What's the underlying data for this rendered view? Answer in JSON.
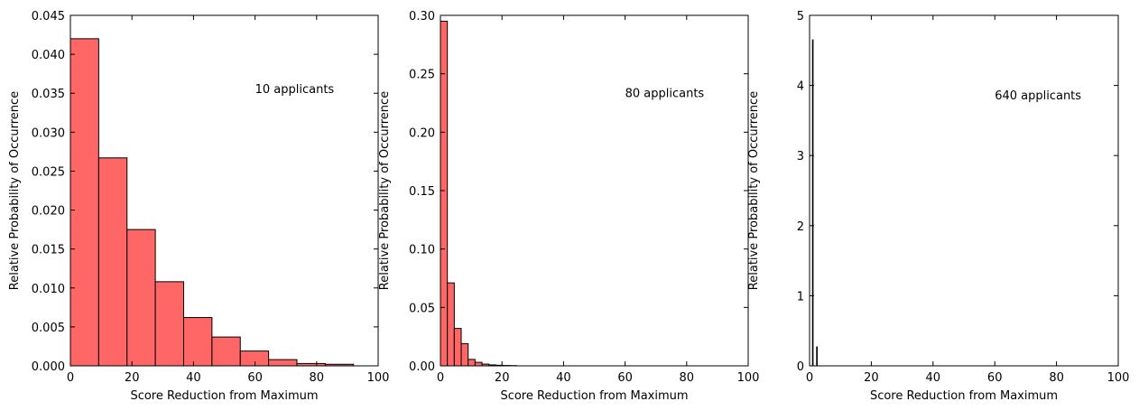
{
  "chart_data": [
    {
      "type": "bar",
      "xlabel": "Score Reduction from Maximum",
      "ylabel": "Relative Probability of Occurrence",
      "annotation": "10 applicants",
      "annotation_at": [
        60,
        0.035
      ],
      "xlim": [
        0,
        100
      ],
      "ylim": [
        0,
        0.045
      ],
      "xticks": [
        0,
        20,
        40,
        60,
        80,
        100
      ],
      "yticks": [
        "0.000",
        "0.005",
        "0.010",
        "0.015",
        "0.020",
        "0.025",
        "0.030",
        "0.035",
        "0.040",
        "0.045"
      ],
      "bin_edges": [
        0,
        9.2,
        18.4,
        27.6,
        36.8,
        46.0,
        55.2,
        64.4,
        73.6,
        82.8,
        92.0
      ],
      "values": [
        0.042,
        0.0267,
        0.0175,
        0.0108,
        0.0062,
        0.0037,
        0.0019,
        0.0008,
        0.0003,
        0.0002
      ],
      "bar_color": "#ff6666",
      "edge_color": "#000000",
      "grid": false
    },
    {
      "type": "bar",
      "xlabel": "Score Reduction from Maximum",
      "ylabel": "Relative Probability of Occurrence",
      "annotation": "80 applicants",
      "annotation_at": [
        60,
        0.23
      ],
      "xlim": [
        0,
        100
      ],
      "ylim": [
        0,
        0.3
      ],
      "xticks": [
        0,
        20,
        40,
        60,
        80,
        100
      ],
      "yticks": [
        "0.00",
        "0.05",
        "0.10",
        "0.15",
        "0.20",
        "0.25",
        "0.30"
      ],
      "bin_edges": [
        0,
        2.25,
        4.5,
        6.75,
        9.0,
        11.25,
        13.5,
        15.75,
        18.0,
        20.25,
        22.5,
        24.75
      ],
      "values": [
        0.295,
        0.071,
        0.032,
        0.019,
        0.0055,
        0.003,
        0.0015,
        0.0008,
        0.0005,
        0.0003,
        0.0002
      ],
      "bar_color": "#ff6666",
      "edge_color": "#000000",
      "grid": false
    },
    {
      "type": "bar",
      "xlabel": "Score Reduction from Maximum",
      "ylabel": "Relative Probability of Occurrence",
      "annotation": "640 applicants",
      "annotation_at": [
        60,
        3.8
      ],
      "xlim": [
        0,
        100
      ],
      "ylim": [
        0,
        5
      ],
      "xticks": [
        0,
        20,
        40,
        60,
        80,
        100
      ],
      "yticks": [
        "0",
        "1",
        "2",
        "3",
        "4",
        "5"
      ],
      "bin_edges": [
        0,
        0.19,
        0.38,
        0.57,
        0.76,
        0.95,
        1.14,
        1.33,
        1.52,
        1.71,
        1.9,
        2.09,
        2.28,
        2.47,
        2.66,
        2.85,
        3.04
      ],
      "values": [
        0,
        0,
        0,
        0,
        0,
        4.65,
        0,
        0,
        0,
        0,
        0,
        0,
        0.27,
        0,
        0,
        0
      ],
      "bar_color": "#ff6666",
      "edge_color": "#000000",
      "grid": false
    }
  ]
}
